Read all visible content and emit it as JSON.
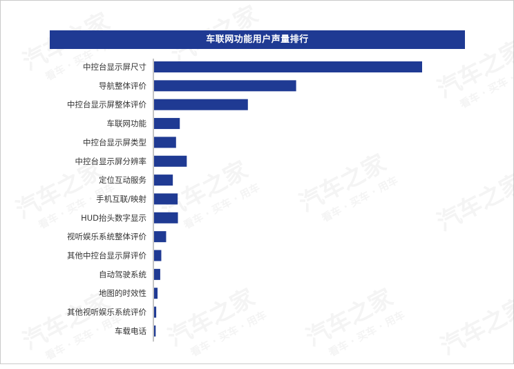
{
  "chart_data": {
    "type": "bar",
    "orientation": "horizontal",
    "title": "车联网功能用户声量排行",
    "categories": [
      "中控台显示屏尺寸",
      "导航整体评价",
      "中控台显示屏整体评价",
      "车联网功能",
      "中控台显示屏类型",
      "中控台显示屏分辨率",
      "定位互动服务",
      "手机互联/映射",
      "HUD抬头数字显示",
      "视听娱乐系统整体评价",
      "其他中控台显示屏评价",
      "自动驾驶系统",
      "地图的时效性",
      "其他视听娱乐系统评价",
      "车载电话"
    ],
    "values": [
      100,
      53,
      35,
      9.6,
      8.2,
      12.2,
      7,
      8.8,
      8.9,
      4.5,
      2.7,
      2.3,
      1.3,
      0.8,
      0.6
    ],
    "xlabel": "",
    "ylabel": "",
    "grid": false,
    "bar_color": "#1f3a93"
  },
  "watermark": {
    "brand": "汽车之家",
    "tagline": "看车 · 买车 · 用车"
  }
}
